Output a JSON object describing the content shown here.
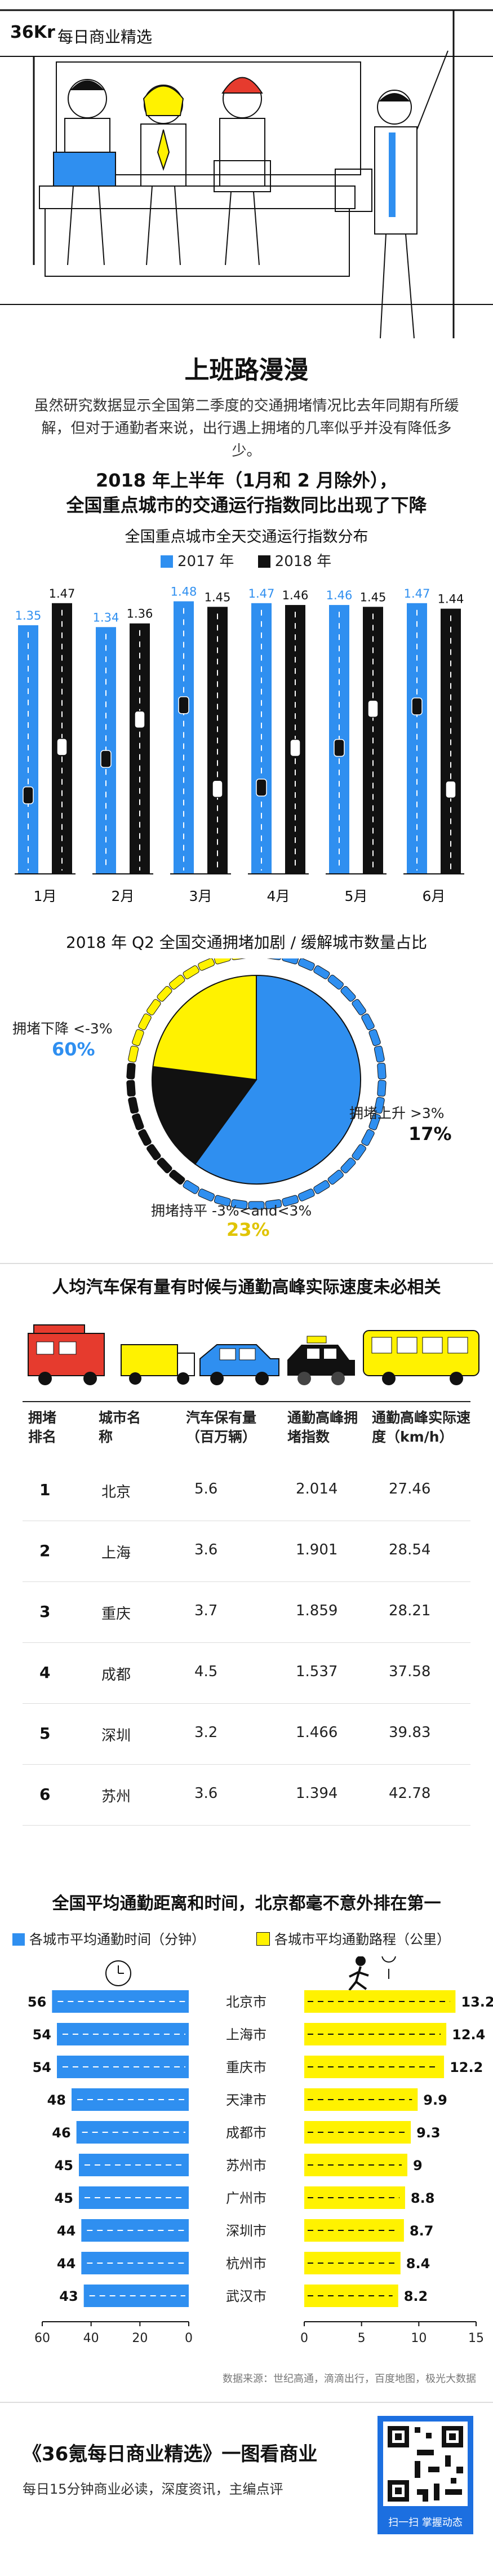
{
  "header": {
    "logo": "36Kr",
    "logo_sub": "每日商业精选"
  },
  "title": "上班路漫漫",
  "intro": "虽然研究数据显示全国第二季度的交通拥堵情况比去年同期有所缓解，但对于通勤者来说，出行遇上拥堵的几率似乎并没有降低多少。",
  "section1": {
    "heading_line1": "2018 年上半年（1月和 2 月除外），",
    "heading_line2": "全国重点城市的交通运行指数同比出现了下降",
    "chart_title": "全国重点城市全天交通运行指数分布",
    "legend_2017": "2017 年",
    "legend_2018": "2018 年"
  },
  "section2": {
    "chart_title": "2018 年 Q2 全国交通拥堵加剧 / 缓解城市数量占比",
    "label_down": "拥堵下降 <-3%",
    "label_up": "拥堵上升 >3%",
    "label_flat": "拥堵持平 -3%<and<3%"
  },
  "section3": {
    "heading": "人均汽车保有量有时候与通勤高峰实际速度未必相关",
    "col_rank": "拥堵排名",
    "col_city": "城市名称",
    "col_cars": "汽车保有量（百万辆）",
    "col_index": "通勤高峰拥堵指数",
    "col_speed": "通勤高峰实际速度（km/h）",
    "rows": [
      {
        "rank": "1",
        "city": "北京",
        "cars": "5.6",
        "index": "2.014",
        "speed": "27.46"
      },
      {
        "rank": "2",
        "city": "上海",
        "cars": "3.6",
        "index": "1.901",
        "speed": "28.54"
      },
      {
        "rank": "3",
        "city": "重庆",
        "cars": "3.7",
        "index": "1.859",
        "speed": "28.21"
      },
      {
        "rank": "4",
        "city": "成都",
        "cars": "4.5",
        "index": "1.537",
        "speed": "37.58"
      },
      {
        "rank": "5",
        "city": "深圳",
        "cars": "3.2",
        "index": "1.466",
        "speed": "39.83"
      },
      {
        "rank": "6",
        "city": "苏州",
        "cars": "3.6",
        "index": "1.394",
        "speed": "42.78"
      }
    ]
  },
  "section4": {
    "heading": "全国平均通勤距离和时间，北京都毫不意外排在第一",
    "legend_time": "各城市平均通勤时间（分钟）",
    "legend_dist": "各城市平均通勤路程（公里）"
  },
  "source_note": "数据来源：世纪高通，滴滴出行，百度地图，极光大数据",
  "footer": {
    "title": "《36氪每日商业精选》一图看商业",
    "subtitle": "每日15分钟商业必读，深度资讯，主编点评",
    "qr_caption": "扫一扫 掌握动态"
  },
  "colors": {
    "blue": "#2f8ff0",
    "black": "#111111",
    "yellow": "#fff200",
    "red": "#e63b2e"
  },
  "chart_data": [
    {
      "type": "bar",
      "title": "全国重点城市全天交通运行指数分布",
      "categories": [
        "1月",
        "2月",
        "3月",
        "4月",
        "5月",
        "6月"
      ],
      "series": [
        {
          "name": "2017 年",
          "values": [
            1.35,
            1.34,
            1.48,
            1.47,
            1.46,
            1.47
          ]
        },
        {
          "name": "2018 年",
          "values": [
            1.47,
            1.36,
            1.45,
            1.46,
            1.45,
            1.44
          ]
        }
      ],
      "grid": false,
      "legend": "top"
    },
    {
      "type": "pie",
      "title": "2018 年 Q2 全国交通拥堵加剧 / 缓解城市数量占比",
      "categories": [
        "拥堵下降 <-3%",
        "拥堵上升 >3%",
        "拥堵持平 -3%<and<3%"
      ],
      "values": [
        60,
        17,
        23
      ],
      "value_labels": [
        "60%",
        "17%",
        "23%"
      ]
    },
    {
      "type": "bar",
      "title": "各城市平均通勤时间（分钟）",
      "categories": [
        "北京市",
        "上海市",
        "重庆市",
        "天津市",
        "成都市",
        "苏州市",
        "广州市",
        "深圳市",
        "杭州市",
        "武汉市"
      ],
      "values": [
        56,
        54,
        54,
        48,
        46,
        45,
        45,
        44,
        44,
        43
      ],
      "xlim": [
        0,
        60
      ],
      "ticks": [
        "60",
        "40",
        "20",
        "0"
      ],
      "orientation": "horizontal-left"
    },
    {
      "type": "bar",
      "title": "各城市平均通勤路程（公里）",
      "categories": [
        "北京市",
        "上海市",
        "重庆市",
        "天津市",
        "成都市",
        "苏州市",
        "广州市",
        "深圳市",
        "杭州市",
        "武汉市"
      ],
      "values": [
        13.2,
        12.4,
        12.2,
        9.9,
        9.3,
        9,
        8.8,
        8.7,
        8.4,
        8.2
      ],
      "xlim": [
        0,
        15
      ],
      "ticks": [
        "0",
        "5",
        "10",
        "15"
      ],
      "orientation": "horizontal-right"
    }
  ]
}
